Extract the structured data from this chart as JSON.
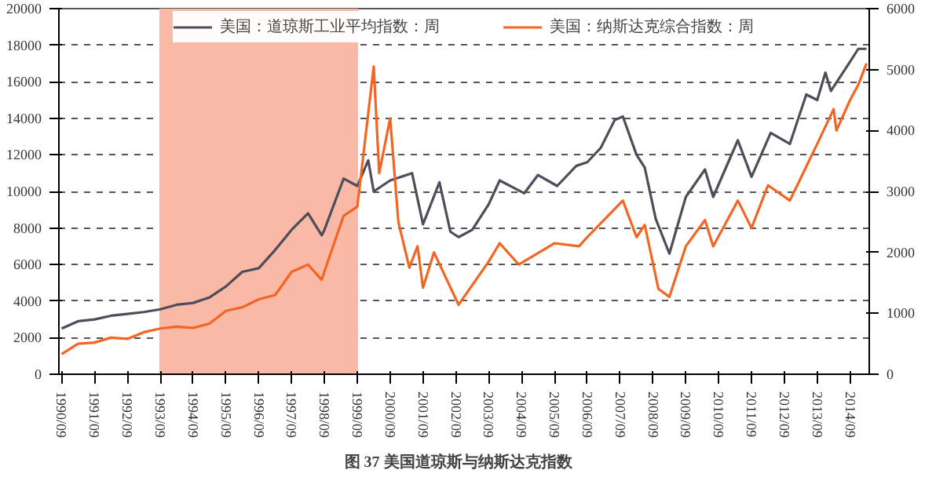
{
  "chart_data": {
    "type": "line",
    "title": "图 37    美国道琼斯与纳斯达克指数",
    "xlim": [
      "1990-08",
      "2015-04"
    ],
    "ylim": [
      0,
      20000
    ],
    "yticks": [
      0,
      2000,
      4000,
      6000,
      8000,
      10000,
      12000,
      14000,
      16000,
      18000,
      20000
    ],
    "y2lim": [
      0,
      6000
    ],
    "y2ticks": [
      0,
      1000,
      2000,
      3000,
      4000,
      5000,
      6000
    ],
    "xticks": [
      {
        "value": "1990-09",
        "label": "1990/09"
      },
      {
        "value": "1991-09",
        "label": "1991/09"
      },
      {
        "value": "1992-09",
        "label": "1992/09"
      },
      {
        "value": "1993-09",
        "label": "1993/09"
      },
      {
        "value": "1994-09",
        "label": "1994/09"
      },
      {
        "value": "1995-09",
        "label": "1995/09"
      },
      {
        "value": "1996-09",
        "label": "1996/09"
      },
      {
        "value": "1997-09",
        "label": "1997/09"
      },
      {
        "value": "1998-09",
        "label": "1998/09"
      },
      {
        "value": "1999-09",
        "label": "1999/09"
      },
      {
        "value": "2000-09",
        "label": "2000/09"
      },
      {
        "value": "2001-09",
        "label": "2001/09"
      },
      {
        "value": "2002-09",
        "label": "2002/09"
      },
      {
        "value": "2003-09",
        "label": "2003/09"
      },
      {
        "value": "2004-09",
        "label": "2004/09"
      },
      {
        "value": "2005-09",
        "label": "2005/09"
      },
      {
        "value": "2006-09",
        "label": "2006/09"
      },
      {
        "value": "2007-09",
        "label": "2007/09"
      },
      {
        "value": "2008-09",
        "label": "2008/09"
      },
      {
        "value": "2009-09",
        "label": "2009/09"
      },
      {
        "value": "2010-09",
        "label": "2010/09"
      },
      {
        "value": "2011-09",
        "label": "2011/09"
      },
      {
        "value": "2012-09",
        "label": "2012/09"
      },
      {
        "value": "2013-09",
        "label": "2013/09"
      },
      {
        "value": "2014-09",
        "label": "2014/09"
      }
    ],
    "grid": "y",
    "legend": "top",
    "line_style": "solid",
    "marker": "none",
    "bands": [
      {
        "axis": "x",
        "from": "1993-09",
        "to": "1999-09",
        "color": "#f9b9a6"
      }
    ],
    "series": [
      {
        "name": "美国：道琼斯工业平均指数：周",
        "color": "#4d4d5c",
        "x": [
          "1990-09",
          "1991-03",
          "1991-09",
          "1992-03",
          "1992-09",
          "1993-03",
          "1993-09",
          "1994-03",
          "1994-09",
          "1995-03",
          "1995-09",
          "1996-03",
          "1996-09",
          "1997-03",
          "1997-09",
          "1998-03",
          "1998-08",
          "1998-09",
          "1999-04",
          "1999-09",
          "2000-01",
          "2000-03",
          "2000-09",
          "2001-05",
          "2001-09",
          "2002-03",
          "2002-07",
          "2002-10",
          "2003-03",
          "2003-09",
          "2004-01",
          "2004-10",
          "2005-03",
          "2005-10",
          "2006-05",
          "2006-09",
          "2007-02",
          "2007-07",
          "2007-10",
          "2008-03",
          "2008-06",
          "2008-10",
          "2009-03",
          "2009-09",
          "2010-04",
          "2010-07",
          "2011-04",
          "2011-09",
          "2012-04",
          "2012-11",
          "2013-05",
          "2013-09",
          "2013-12",
          "2014-02",
          "2014-09",
          "2014-12",
          "2015-03"
        ],
        "values": [
          2500,
          2900,
          3000,
          3200,
          3300,
          3400,
          3550,
          3800,
          3900,
          4200,
          4800,
          5600,
          5800,
          6800,
          7900,
          8800,
          7600,
          7900,
          10700,
          10300,
          11700,
          10000,
          10600,
          11000,
          8200,
          10500,
          7800,
          7500,
          7900,
          9300,
          10600,
          9900,
          10900,
          10300,
          11400,
          11600,
          12400,
          13900,
          14100,
          12000,
          11300,
          8500,
          6600,
          9700,
          11200,
          9700,
          12800,
          10800,
          13200,
          12600,
          15300,
          15000,
          16500,
          15500,
          17100,
          17800,
          17800
        ]
      },
      {
        "name": "美国：纳斯达克综合指数：周",
        "color": "#f26522",
        "axis": "y2",
        "x": [
          "1990-09",
          "1991-03",
          "1991-09",
          "1992-03",
          "1992-09",
          "1993-03",
          "1993-09",
          "1994-03",
          "1994-09",
          "1995-03",
          "1995-09",
          "1996-03",
          "1996-09",
          "1997-03",
          "1997-09",
          "1998-03",
          "1998-08",
          "1998-09",
          "1999-04",
          "1999-09",
          "2000-03",
          "2000-05",
          "2000-09",
          "2000-12",
          "2001-04",
          "2001-07",
          "2001-09",
          "2002-01",
          "2002-10",
          "2003-09",
          "2004-01",
          "2004-08",
          "2005-09",
          "2006-06",
          "2006-09",
          "2007-10",
          "2008-03",
          "2008-06",
          "2008-11",
          "2009-03",
          "2009-09",
          "2010-04",
          "2010-07",
          "2011-04",
          "2011-09",
          "2012-03",
          "2012-11",
          "2013-09",
          "2014-03",
          "2014-04",
          "2014-09",
          "2014-12",
          "2015-03"
        ],
        "values": [
          330,
          500,
          520,
          600,
          580,
          690,
          750,
          780,
          760,
          830,
          1040,
          1100,
          1230,
          1300,
          1680,
          1800,
          1550,
          1690,
          2600,
          2750,
          5050,
          3300,
          4200,
          2500,
          1750,
          2100,
          1420,
          2000,
          1140,
          1850,
          2150,
          1800,
          2150,
          2100,
          2250,
          2850,
          2250,
          2450,
          1400,
          1270,
          2100,
          2530,
          2100,
          2850,
          2400,
          3100,
          2850,
          3780,
          4350,
          4000,
          4500,
          4750,
          5100
        ]
      }
    ]
  }
}
